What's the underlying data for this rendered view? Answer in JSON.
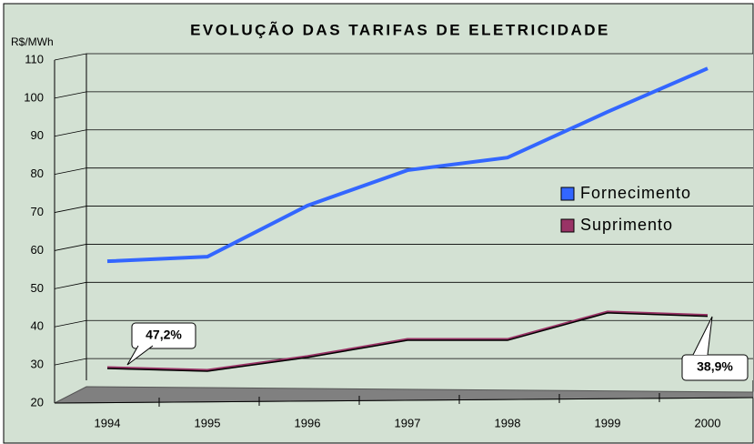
{
  "chart_data": {
    "type": "line",
    "title": "EVOLUÇÃO DAS TARIFAS DE ELETRICIDADE",
    "y_label": "R$/MWh",
    "categories": [
      "1994",
      "1995",
      "1996",
      "1997",
      "1998",
      "1999",
      "2000"
    ],
    "series": [
      {
        "name": "Fornecimento",
        "color": "#3366ff",
        "values": [
          57.2,
          58.4,
          71.8,
          81.1,
          84.4,
          96.4,
          107.8
        ]
      },
      {
        "name": "Suprimento",
        "color": "#993366",
        "values": [
          29.3,
          28.6,
          32.2,
          36.7,
          36.7,
          43.9,
          43.0
        ]
      }
    ],
    "annotations": [
      "47,2%",
      "38,9%"
    ],
    "ylim": [
      20,
      110
    ],
    "yticks": [
      20,
      30,
      40,
      50,
      60,
      70,
      80,
      90,
      100,
      110
    ],
    "grid": true,
    "legend": "right"
  }
}
